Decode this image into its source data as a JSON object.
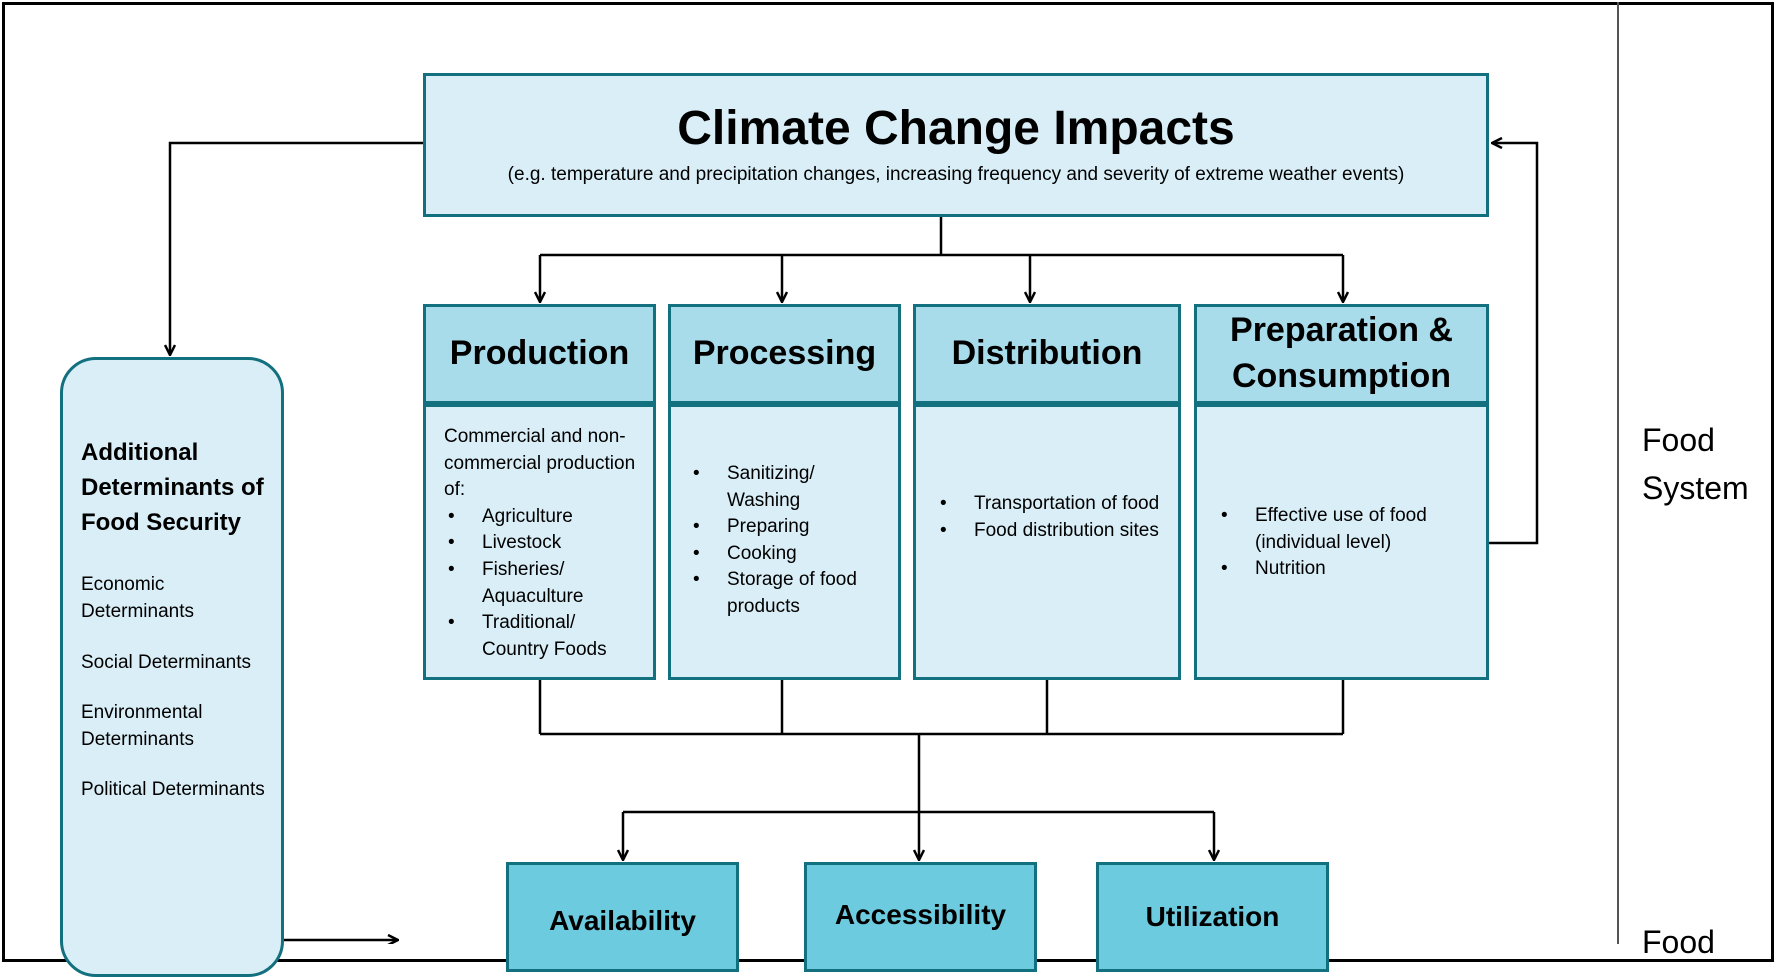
{
  "climate": {
    "title": "Climate Change Impacts",
    "subtitle": "(e.g. temperature and precipitation changes, increasing frequency and severity of extreme weather events)"
  },
  "stages": [
    {
      "title": "Production",
      "intro": "Commercial and non-commercial production of:",
      "items": [
        "Agriculture",
        "Livestock",
        "Fisheries/ Aquaculture",
        "Traditional/ Country Foods"
      ]
    },
    {
      "title": "Processing",
      "items": [
        "Sanitizing/ Washing",
        "Preparing",
        "Cooking",
        "Storage of food products"
      ]
    },
    {
      "title": "Distribution",
      "items": [
        "Transportation of food",
        "Food distribution sites"
      ]
    },
    {
      "title": "Preparation & Consumption",
      "items": [
        "Effective use of food (individual level)",
        "Nutrition"
      ]
    }
  ],
  "additional": {
    "title": "Additional Determinants of Food Security",
    "items": [
      "Economic Determinants",
      "Social Determinants",
      "Environmental Determinants",
      "Political Determinants"
    ]
  },
  "security": [
    "Availability",
    "Accessibility",
    "Utilization"
  ],
  "labels": {
    "food_system": "Food System",
    "food_partial": "Food"
  }
}
